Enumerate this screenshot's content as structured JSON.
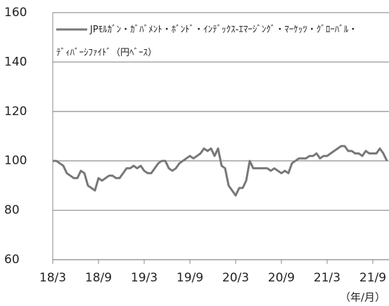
{
  "chart_data": {
    "type": "line",
    "x_label": "（年/月）",
    "categories": [
      "18/3",
      null,
      null,
      null,
      null,
      null,
      null,
      null,
      null,
      null,
      null,
      null,
      null,
      "18/9",
      null,
      null,
      null,
      null,
      null,
      null,
      null,
      null,
      null,
      null,
      null,
      null,
      "19/3",
      null,
      null,
      null,
      null,
      null,
      null,
      null,
      null,
      null,
      null,
      null,
      null,
      "19/9",
      null,
      null,
      null,
      null,
      null,
      null,
      null,
      null,
      null,
      null,
      null,
      null,
      "20/3",
      null,
      null,
      null,
      null,
      null,
      null,
      null,
      null,
      null,
      null,
      null,
      null,
      "20/9",
      null,
      null,
      null,
      null,
      null,
      null,
      null,
      null,
      null,
      null,
      null,
      null,
      "21/3",
      null,
      null,
      null,
      null,
      null,
      null,
      null,
      null,
      null,
      null,
      null,
      null,
      "21/9",
      null,
      null,
      null,
      null
    ],
    "series": [
      {
        "name": "JPﾓﾙｶﾞﾝ・ｶﾞﾊﾞﾒﾝﾄ・ﾎﾞﾝﾄﾞ・ｲﾝﾃﾞｯｸｽ-ｴﾏｰｼﾞﾝｸﾞ・ﾏｰｹｯﾂ・ｸﾞﾛｰﾊﾞﾙ・ﾃﾞｨﾊﾞｰｼﾌｧｲﾄﾞ（円ﾍﾞｰｽ）",
        "color": "#777777",
        "values": [
          100,
          100,
          99,
          98,
          95,
          94,
          93,
          93,
          96,
          95,
          90,
          89,
          88,
          93,
          92,
          93,
          94,
          94,
          93,
          93,
          95,
          97,
          97,
          98,
          97,
          98,
          96,
          95,
          95,
          97,
          99,
          100,
          100,
          97,
          96,
          97,
          99,
          100,
          101,
          102,
          101,
          102,
          103,
          105,
          104,
          105,
          102,
          105,
          98,
          97,
          90,
          88,
          86,
          89,
          89,
          92,
          100,
          97,
          97,
          97,
          97,
          97,
          96,
          97,
          96,
          95,
          96,
          95,
          99,
          100,
          101,
          101,
          101,
          102,
          102,
          103,
          101,
          102,
          102,
          103,
          104,
          105,
          106,
          106,
          104,
          104,
          103,
          103,
          102,
          104,
          103,
          103,
          103,
          105,
          103,
          100
        ]
      }
    ],
    "ylim": [
      60,
      160
    ],
    "yticks": [
      60,
      80,
      100,
      120,
      140,
      160
    ],
    "grid": true,
    "legend": "top-left"
  }
}
